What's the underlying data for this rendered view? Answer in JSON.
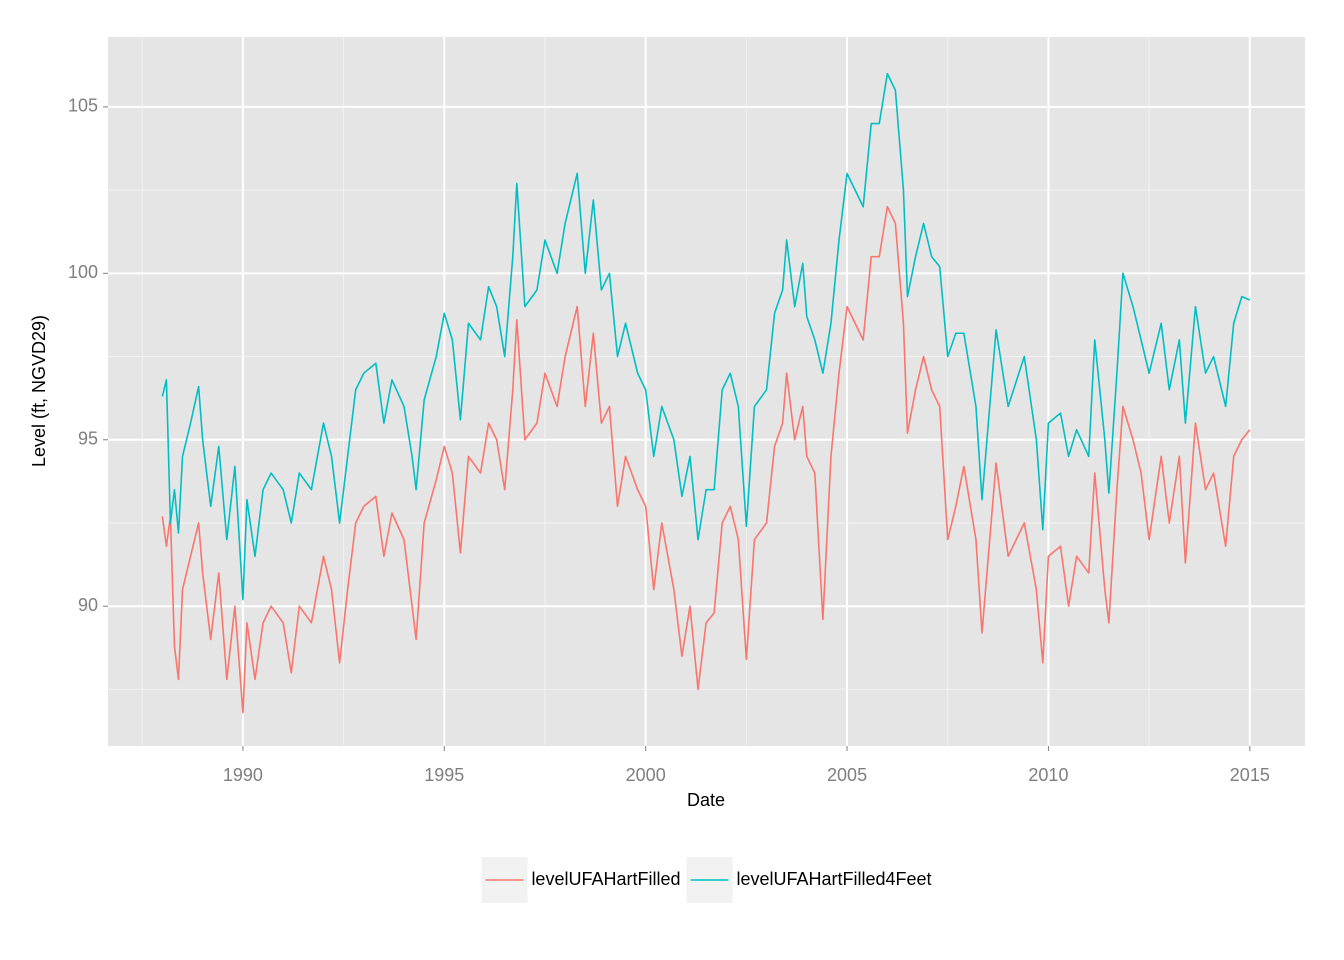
{
  "chart_data": {
    "type": "line",
    "xlabel": "Date",
    "ylabel": "Level (ft, NGVD29)",
    "xlim": [
      1986.65,
      2016.37
    ],
    "ylim": [
      85.8,
      107.1
    ],
    "xticks": [
      1990,
      1995,
      2000,
      2005,
      2010,
      2015
    ],
    "yticks": [
      90,
      95,
      100,
      105
    ],
    "x_minor_ticks": [
      1987.5,
      1992.5,
      1997.5,
      2002.5,
      2007.5,
      2012.5
    ],
    "y_minor_ticks": [
      87.5,
      92.5,
      97.5,
      102.5
    ],
    "grid": true,
    "legend": "bottom",
    "x": [
      1988.0,
      1988.1,
      1988.2,
      1988.3,
      1988.4,
      1988.5,
      1988.7,
      1988.9,
      1989.0,
      1989.2,
      1989.4,
      1989.6,
      1989.8,
      1990.0,
      1990.1,
      1990.3,
      1990.5,
      1990.7,
      1991.0,
      1991.2,
      1991.4,
      1991.7,
      1992.0,
      1992.2,
      1992.4,
      1992.6,
      1992.8,
      1993.0,
      1993.3,
      1993.5,
      1993.7,
      1994.0,
      1994.2,
      1994.3,
      1994.5,
      1994.8,
      1995.0,
      1995.2,
      1995.4,
      1995.6,
      1995.9,
      1996.1,
      1996.3,
      1996.5,
      1996.7,
      1996.8,
      1997.0,
      1997.3,
      1997.5,
      1997.8,
      1998.0,
      1998.3,
      1998.5,
      1998.7,
      1998.9,
      1999.1,
      1999.3,
      1999.5,
      1999.8,
      2000.0,
      2000.2,
      2000.4,
      2000.7,
      2000.9,
      2001.1,
      2001.3,
      2001.5,
      2001.7,
      2001.9,
      2002.1,
      2002.3,
      2002.5,
      2002.7,
      2003.0,
      2003.2,
      2003.4,
      2003.5,
      2003.7,
      2003.9,
      2004.0,
      2004.2,
      2004.4,
      2004.6,
      2004.8,
      2005.0,
      2005.2,
      2005.4,
      2005.6,
      2005.8,
      2006.0,
      2006.2,
      2006.4,
      2006.5,
      2006.7,
      2006.9,
      2007.1,
      2007.3,
      2007.5,
      2007.7,
      2007.9,
      2008.2,
      2008.35,
      2008.7,
      2009.0,
      2009.4,
      2009.7,
      2009.86,
      2010.0,
      2010.3,
      2010.5,
      2010.7,
      2011.0,
      2011.15,
      2011.4,
      2011.5,
      2011.7,
      2011.85,
      2012.1,
      2012.3,
      2012.5,
      2012.8,
      2013.0,
      2013.25,
      2013.4,
      2013.65,
      2013.9,
      2014.1,
      2014.4,
      2014.6,
      2014.8,
      2015.0
    ],
    "series": [
      {
        "name": "levelUFAHartFilled",
        "color": "#F8766D",
        "values": [
          92.7,
          91.8,
          92.7,
          88.8,
          87.8,
          90.5,
          91.5,
          92.5,
          91,
          89,
          91,
          87.8,
          90,
          86.8,
          89.5,
          87.8,
          89.5,
          90,
          89.5,
          88,
          90,
          89.5,
          91.5,
          90.5,
          88.3,
          90.5,
          92.5,
          93,
          93.3,
          91.5,
          92.8,
          92,
          90,
          89,
          92.5,
          93.8,
          94.8,
          94,
          91.6,
          94.5,
          94,
          95.5,
          95,
          93.5,
          96.5,
          98.6,
          95,
          95.5,
          97,
          96,
          97.5,
          99,
          96,
          98.2,
          95.5,
          96,
          93,
          94.5,
          93.5,
          93,
          90.5,
          92.5,
          90.5,
          88.5,
          90,
          87.5,
          89.5,
          89.8,
          92.5,
          93,
          92,
          88.4,
          92,
          92.5,
          94.8,
          95.5,
          97,
          95,
          96,
          94.5,
          94,
          89.6,
          94.5,
          97,
          99,
          98.5,
          98,
          100.5,
          100.5,
          102,
          101.5,
          98.5,
          95.2,
          96.5,
          97.5,
          96.5,
          96,
          92,
          93,
          94.2,
          92,
          89.2,
          94.3,
          91.5,
          92.5,
          90.5,
          88.3,
          91.5,
          91.8,
          90,
          91.5,
          91,
          94,
          90.5,
          89.5,
          93.5,
          96,
          95,
          94,
          92,
          94.5,
          92.5,
          94.5,
          91.3,
          95.5,
          93.5,
          94,
          91.8,
          94.5,
          95,
          95.3
        ]
      },
      {
        "name": "levelUFAHartFilled4Feet",
        "color": "#00BFC4",
        "values": [
          96.3,
          96.8,
          92.5,
          93.5,
          92.2,
          94.5,
          95.5,
          96.6,
          95,
          93,
          94.8,
          92,
          94.2,
          90.2,
          93.2,
          91.5,
          93.5,
          94,
          93.5,
          92.5,
          94,
          93.5,
          95.5,
          94.5,
          92.5,
          94.5,
          96.5,
          97,
          97.3,
          95.5,
          96.8,
          96,
          94.5,
          93.5,
          96.2,
          97.5,
          98.8,
          98,
          95.6,
          98.5,
          98,
          99.6,
          99,
          97.5,
          100.5,
          102.7,
          99,
          99.5,
          101,
          100,
          101.5,
          103,
          100,
          102.2,
          99.5,
          100,
          97.5,
          98.5,
          97,
          96.5,
          94.5,
          96,
          95,
          93.3,
          94.5,
          92,
          93.5,
          93.5,
          96.5,
          97,
          96,
          92.4,
          96,
          96.5,
          98.8,
          99.5,
          101,
          99,
          100.3,
          98.7,
          98,
          97,
          98.5,
          101,
          103,
          102.5,
          102,
          104.5,
          104.5,
          106,
          105.5,
          102.5,
          99.3,
          100.5,
          101.5,
          100.5,
          100.2,
          97.5,
          98.2,
          98.2,
          96,
          93.2,
          98.3,
          96,
          97.5,
          95,
          92.3,
          95.5,
          95.8,
          94.5,
          95.3,
          94.5,
          98,
          95,
          93.4,
          97,
          100,
          99,
          98,
          97,
          98.5,
          96.5,
          98,
          95.5,
          99,
          97,
          97.5,
          96,
          98.5,
          99.3,
          99.2
        ]
      }
    ]
  }
}
